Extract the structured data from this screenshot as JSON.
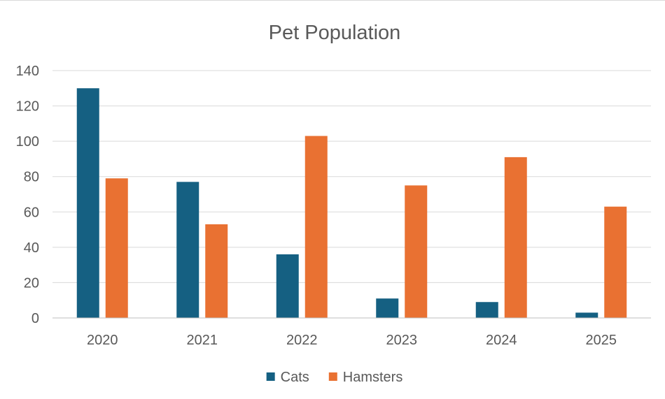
{
  "chart_data": {
    "type": "bar",
    "title": "Pet Population",
    "xlabel": "",
    "ylabel": "",
    "categories": [
      "2020",
      "2021",
      "2022",
      "2023",
      "2024",
      "2025"
    ],
    "series": [
      {
        "name": "Cats",
        "color": "#156082",
        "values": [
          130,
          77,
          36,
          11,
          9,
          3
        ]
      },
      {
        "name": "Hamsters",
        "color": "#e97132",
        "values": [
          79,
          53,
          103,
          75,
          91,
          63
        ]
      }
    ],
    "ylim": [
      0,
      140
    ],
    "yticks": [
      0,
      20,
      40,
      60,
      80,
      100,
      120,
      140
    ],
    "grid": true,
    "legend_position": "bottom"
  }
}
